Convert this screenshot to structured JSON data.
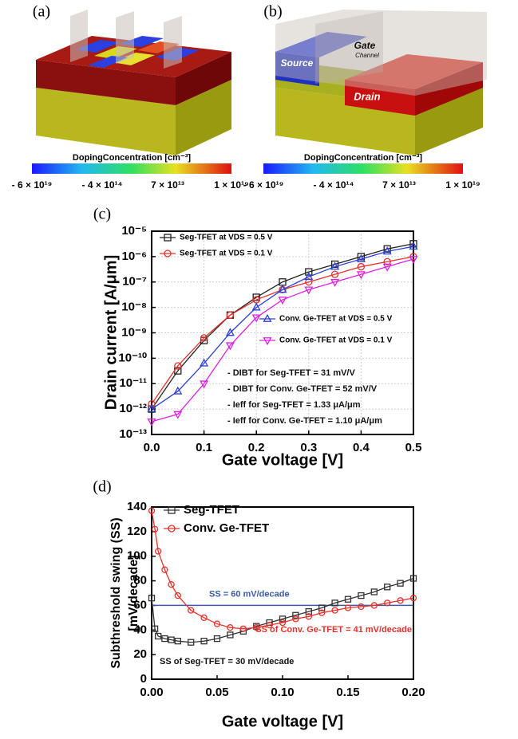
{
  "figure": {
    "panels": [
      {
        "label": "(a)"
      },
      {
        "label": "(b)",
        "device_labels": [
          "Source",
          "Gate",
          "Channel",
          "Drain"
        ]
      }
    ],
    "colorbar": {
      "title": "DopingConcentration [cm⁻³]",
      "labels": [
        "- 6 × 10¹⁹",
        "- 4 × 10¹⁴",
        "7 × 10¹³",
        "1 × 10¹⁹"
      ]
    }
  },
  "chart_data": [
    {
      "type": "line",
      "panel_label": "(c)",
      "x_label": "Gate voltage [V]",
      "y_label": "Drain current [A/μm]",
      "log_y": true,
      "grid": true,
      "x": [
        0,
        0.05,
        0.1,
        0.15,
        0.2,
        0.25,
        0.3,
        0.35,
        0.4,
        0.45,
        0.5
      ],
      "xlim": [
        0,
        0.5
      ],
      "xticks": [
        {
          "value": 0,
          "label": "0.0"
        },
        0.1,
        0.2,
        0.3,
        0.4,
        0.5
      ],
      "ylim": [
        1e-13,
        1e-05
      ],
      "yticks": [
        {
          "value": 1e-13,
          "label": "10⁻¹³"
        },
        {
          "value": 1e-12,
          "label": "10⁻¹²"
        },
        {
          "value": 1e-11,
          "label": "10⁻¹¹"
        },
        {
          "value": 1e-10,
          "label": "10⁻¹⁰"
        },
        {
          "value": 1e-09,
          "label": "10⁻⁹"
        },
        {
          "value": 1e-08,
          "label": "10⁻⁸"
        },
        {
          "value": 1e-07,
          "label": "10⁻⁷"
        },
        {
          "value": 1e-06,
          "label": "10⁻⁶"
        },
        {
          "value": 1e-05,
          "label": "10⁻⁵"
        }
      ],
      "series": [
        {
          "name": "Seg-TFET at VDS = 0.5 V",
          "color": "#222222",
          "marker": "square",
          "values": [
            1e-12,
            3.2e-11,
            5e-10,
            5e-09,
            2.5e-08,
            1e-07,
            2.5e-07,
            5e-07,
            1e-06,
            2e-06,
            3.2e-06
          ]
        },
        {
          "name": "Seg-TFET at VDS = 0.1 V",
          "color": "#e8302a",
          "marker": "circle",
          "values": [
            1.6e-12,
            5e-11,
            6.3e-10,
            5e-09,
            2e-08,
            5e-08,
            1e-07,
            2e-07,
            4e-07,
            6.3e-07,
            1e-06
          ]
        },
        {
          "name": "Conv. Ge-TFET at VDS = 0.5 V",
          "color": "#2b3fd6",
          "marker": "triangle",
          "values": [
            1e-12,
            5e-12,
            6.3e-11,
            1e-09,
            1e-08,
            5e-08,
            1.6e-07,
            4e-07,
            8e-07,
            1.6e-06,
            2.5e-06
          ]
        },
        {
          "name": "Conv. Ge-TFET at VDS = 0.1 V",
          "color": "#e020e0",
          "marker": "triangle-down",
          "values": [
            3.2e-13,
            6.3e-13,
            1e-11,
            3.2e-10,
            4e-09,
            2e-08,
            5e-08,
            1e-07,
            2e-07,
            4e-07,
            8e-07
          ]
        }
      ],
      "annotations": [
        {
          "text": "- DIBT for Seg-TFET = 31 mV/V",
          "color": "#111111"
        },
        {
          "text": "- DIBT for Conv. Ge-TFET = 52 mV/V",
          "color": "#111111"
        },
        {
          "text": "- Ieff for Seg-TFET = 1.33 μA/μm",
          "color": "#111111"
        },
        {
          "text": "- Ieff for Conv. Ge-TFET = 1.10 μA/μm",
          "color": "#111111"
        }
      ]
    },
    {
      "type": "line",
      "panel_label": "(d)",
      "x_label": "Gate voltage [V]",
      "y_label": [
        "Subthreshold swing (SS)",
        "[mV/decade]"
      ],
      "log_y": false,
      "grid": false,
      "x": [
        0,
        0.0025,
        0.005,
        0.01,
        0.015,
        0.02,
        0.03,
        0.04,
        0.05,
        0.06,
        0.07,
        0.08,
        0.09,
        0.1,
        0.11,
        0.12,
        0.13,
        0.14,
        0.15,
        0.16,
        0.17,
        0.18,
        0.19,
        0.2
      ],
      "xlim": [
        0,
        0.2
      ],
      "xticks": [
        {
          "value": 0,
          "label": "0.00"
        },
        0.05,
        {
          "value": 0.1,
          "label": "0.10"
        },
        0.15,
        {
          "value": 0.2,
          "label": "0.20"
        }
      ],
      "ylim": [
        0,
        140
      ],
      "yticks": [
        0,
        20,
        40,
        60,
        80,
        100,
        120,
        140
      ],
      "series": [
        {
          "name": "Seg-TFET",
          "color": "#333333",
          "marker": "square",
          "values": [
            66,
            41,
            35,
            33,
            32,
            31,
            30,
            31,
            33,
            36,
            39,
            43,
            46,
            49,
            52,
            55,
            58,
            62,
            65,
            68,
            71,
            75,
            78,
            82
          ]
        },
        {
          "name": "Conv. Ge-TFET",
          "color": "#e8302a",
          "marker": "circle",
          "values": [
            137,
            122,
            104,
            89,
            77,
            68,
            56,
            50,
            45,
            42,
            41,
            42,
            44,
            46,
            49,
            51,
            54,
            56,
            58,
            59,
            60,
            62,
            64,
            66
          ]
        }
      ],
      "hlines": [
        {
          "value": 60,
          "label": "SS = 60 mV/decade",
          "color": "#3b5ba5"
        }
      ],
      "annotations": [
        {
          "text": "SS of Conv. Ge-TFET = 41 mV/decade",
          "color": "#e8302a"
        },
        {
          "text": "SS of Seg-TFET = 30 mV/decade",
          "color": "#111111"
        }
      ]
    }
  ]
}
